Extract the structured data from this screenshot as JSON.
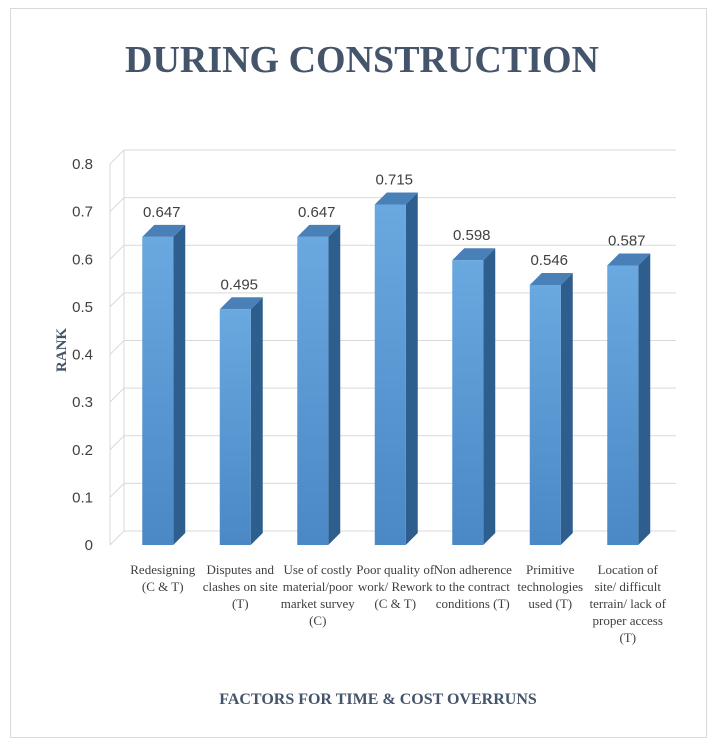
{
  "chart_data": {
    "type": "bar",
    "title": "DURING CONSTRUCTION",
    "xlabel": "FACTORS FOR TIME & COST OVERRUNS",
    "ylabel": "RANK",
    "ylim": [
      0,
      0.8
    ],
    "yticks": [
      "0",
      "0.1",
      "0.2",
      "0.3",
      "0.4",
      "0.5",
      "0.6",
      "0.7",
      "0.8"
    ],
    "grid": true,
    "categories": [
      [
        "Redesigning",
        "(C & T)"
      ],
      [
        "Disputes and",
        "clashes on site",
        "(T)"
      ],
      [
        "Use of costly",
        "material/poor",
        "market survey",
        "(C)"
      ],
      [
        "Poor quality of",
        "work/ Rework",
        "(C & T)"
      ],
      [
        "Non adherence",
        "to the contract",
        "conditions (T)"
      ],
      [
        "Primitive",
        "technologies",
        "used (T)"
      ],
      [
        "Location of",
        "site/ difficult",
        "terrain/ lack of",
        "proper access",
        "(T)"
      ]
    ],
    "values": [
      0.647,
      0.495,
      0.647,
      0.715,
      0.598,
      0.546,
      0.587
    ],
    "value_labels": [
      "0.647",
      "0.495",
      "0.647",
      "0.715",
      "0.598",
      "0.546",
      "0.587"
    ],
    "colors": {
      "bar_front": "#5b9bd5",
      "bar_side": "#2e5e8e",
      "bar_top": "#4a80b8",
      "title": "#44546a",
      "grid": "#d9d9d9"
    }
  }
}
